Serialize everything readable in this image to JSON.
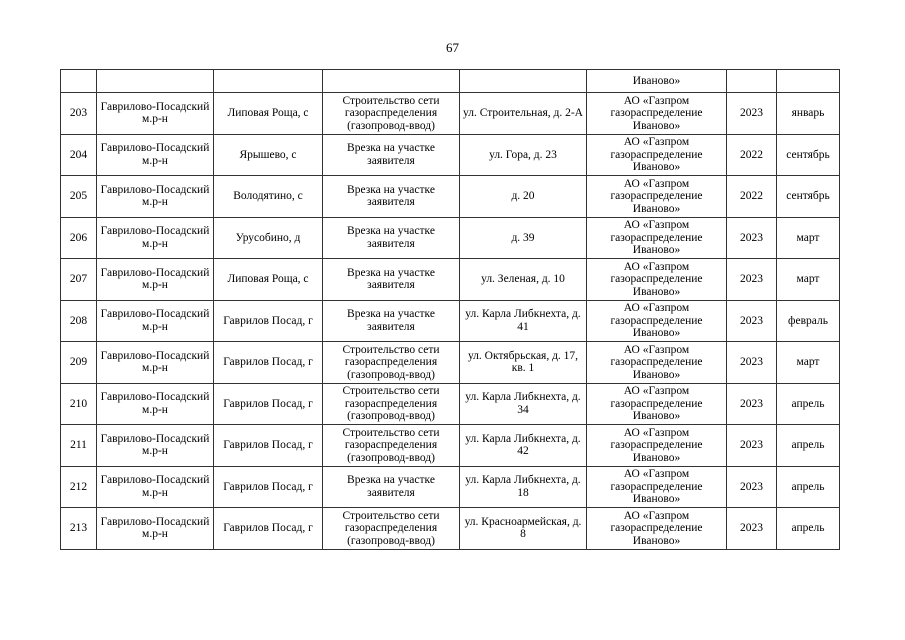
{
  "page_number": "67",
  "continuation_row": [
    "",
    "",
    "",
    "",
    "",
    "Иваново»",
    "",
    ""
  ],
  "rows": [
    [
      "203",
      "Гаврилово-Посадский м.р-н",
      "Липовая Роща, с",
      "Строительство сети газораспределения (газопровод-ввод)",
      "ул. Строительная, д. 2-А",
      "АО «Газпром газораспределение Иваново»",
      "2023",
      "январь"
    ],
    [
      "204",
      "Гаврилово-Посадский м.р-н",
      "Ярышево, с",
      "Врезка на участке заявителя",
      "ул. Гора, д. 23",
      "АО «Газпром газораспределение Иваново»",
      "2022",
      "сентябрь"
    ],
    [
      "205",
      "Гаврилово-Посадский м.р-н",
      "Володятино, с",
      "Врезка на участке заявителя",
      "д. 20",
      "АО «Газпром газораспределение Иваново»",
      "2022",
      "сентябрь"
    ],
    [
      "206",
      "Гаврилово-Посадский м.р-н",
      "Урусобино, д",
      "Врезка на участке заявителя",
      "д. 39",
      "АО «Газпром газораспределение Иваново»",
      "2023",
      "март"
    ],
    [
      "207",
      "Гаврилово-Посадский м.р-н",
      "Липовая Роща, с",
      "Врезка на участке заявителя",
      "ул. Зеленая, д. 10",
      "АО «Газпром газораспределение Иваново»",
      "2023",
      "март"
    ],
    [
      "208",
      "Гаврилово-Посадский м.р-н",
      "Гаврилов Посад, г",
      "Врезка на участке заявителя",
      "ул. Карла Либкнехта, д. 41",
      "АО «Газпром газораспределение Иваново»",
      "2023",
      "февраль"
    ],
    [
      "209",
      "Гаврилово-Посадский м.р-н",
      "Гаврилов Посад, г",
      "Строительство сети газораспределения (газопровод-ввод)",
      "ул. Октябрьская, д. 17, кв. 1",
      "АО «Газпром газораспределение Иваново»",
      "2023",
      "март"
    ],
    [
      "210",
      "Гаврилово-Посадский м.р-н",
      "Гаврилов Посад, г",
      "Строительство сети газораспределения (газопровод-ввод)",
      "ул. Карла Либкнехта, д. 34",
      "АО «Газпром газораспределение Иваново»",
      "2023",
      "апрель"
    ],
    [
      "211",
      "Гаврилово-Посадский м.р-н",
      "Гаврилов Посад, г",
      "Строительство сети газораспределения (газопровод-ввод)",
      "ул. Карла Либкнехта, д. 42",
      "АО «Газпром газораспределение Иваново»",
      "2023",
      "апрель"
    ],
    [
      "212",
      "Гаврилово-Посадский м.р-н",
      "Гаврилов Посад, г",
      "Врезка на участке заявителя",
      "ул. Карла Либкнехта, д. 18",
      "АО «Газпром газораспределение Иваново»",
      "2023",
      "апрель"
    ],
    [
      "213",
      "Гаврилово-Посадский м.р-н",
      "Гаврилов Посад, г",
      "Строительство сети газораспределения (газопровод-ввод)",
      "ул. Красноармейская, д. 8",
      "АО «Газпром газораспределение Иваново»",
      "2023",
      "апрель"
    ]
  ]
}
